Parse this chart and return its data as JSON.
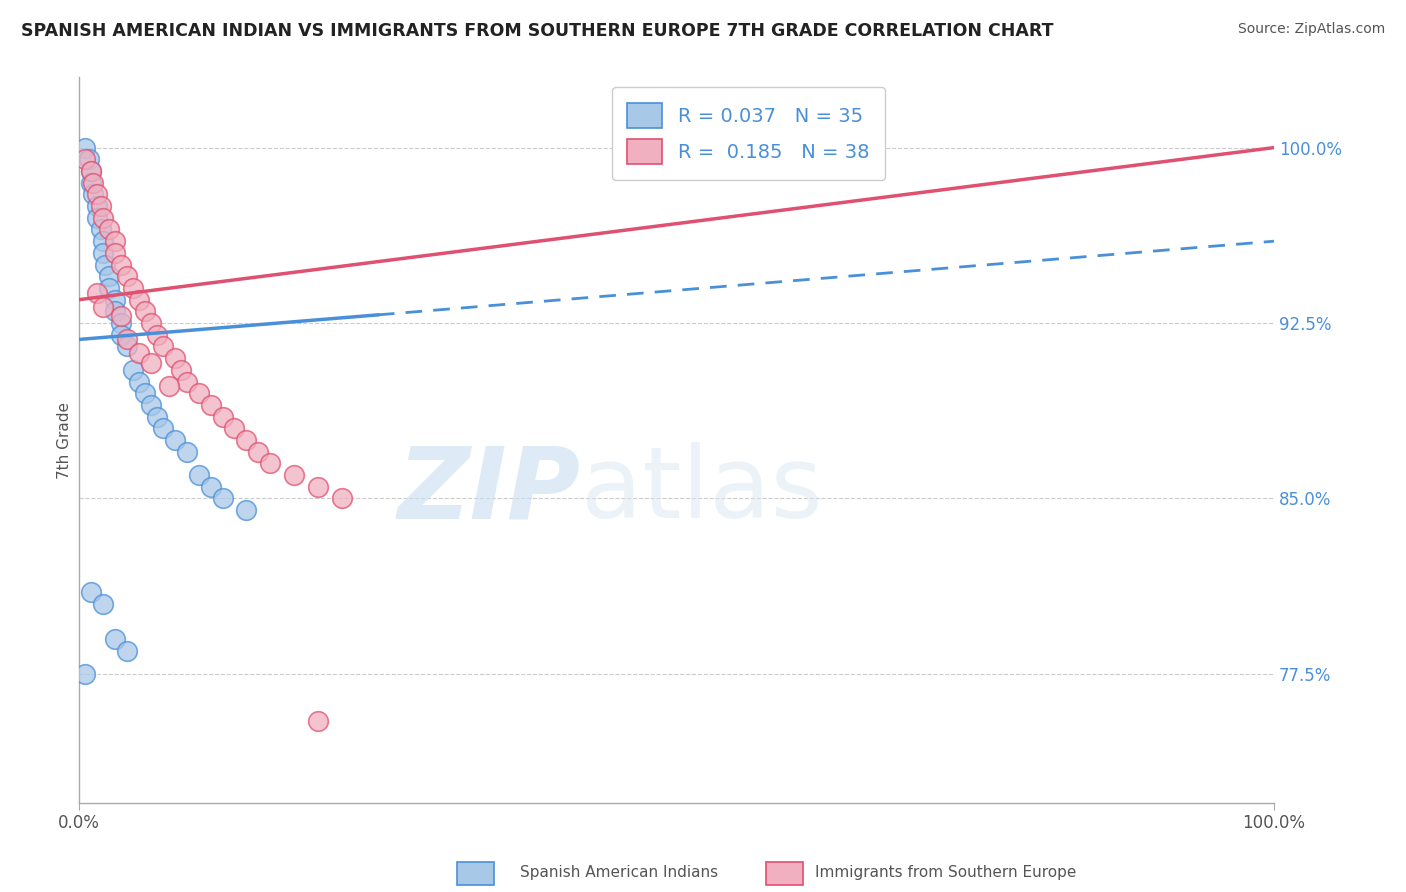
{
  "title": "SPANISH AMERICAN INDIAN VS IMMIGRANTS FROM SOUTHERN EUROPE 7TH GRADE CORRELATION CHART",
  "source": "Source: ZipAtlas.com",
  "ylabel": "7th Grade",
  "right_yticks": [
    77.5,
    85.0,
    92.5,
    100.0
  ],
  "right_yticklabels": [
    "77.5%",
    "85.0%",
    "92.5%",
    "100.0%"
  ],
  "legend_label1": "Spanish American Indians",
  "legend_label2": "Immigrants from Southern Europe",
  "R1": 0.037,
  "N1": 35,
  "R2": 0.185,
  "N2": 38,
  "color_blue": "#a8c8e8",
  "color_pink": "#f0b0c0",
  "color_blue_line": "#4a90d9",
  "color_pink_line": "#e05070",
  "color_blue_dash": "#8ab8e0",
  "watermark_zip": "ZIP",
  "watermark_atlas": "atlas",
  "blue_scatter_x": [
    0.5,
    0.8,
    1.0,
    1.0,
    1.2,
    1.5,
    1.5,
    1.8,
    2.0,
    2.0,
    2.2,
    2.5,
    2.5,
    3.0,
    3.0,
    3.5,
    3.5,
    4.0,
    4.5,
    5.0,
    5.5,
    6.0,
    6.5,
    7.0,
    8.0,
    9.0,
    10.0,
    11.0,
    12.0,
    14.0,
    0.5,
    1.0,
    2.0,
    3.0,
    4.0
  ],
  "blue_scatter_y": [
    100.0,
    99.5,
    99.0,
    98.5,
    98.0,
    97.5,
    97.0,
    96.5,
    96.0,
    95.5,
    95.0,
    94.5,
    94.0,
    93.5,
    93.0,
    92.5,
    92.0,
    91.5,
    90.5,
    90.0,
    89.5,
    89.0,
    88.5,
    88.0,
    87.5,
    87.0,
    86.0,
    85.5,
    85.0,
    84.5,
    77.5,
    81.0,
    80.5,
    79.0,
    78.5
  ],
  "pink_scatter_x": [
    0.5,
    1.0,
    1.2,
    1.5,
    1.8,
    2.0,
    2.5,
    3.0,
    3.0,
    3.5,
    4.0,
    4.5,
    5.0,
    5.5,
    6.0,
    6.5,
    7.0,
    8.0,
    8.5,
    9.0,
    10.0,
    11.0,
    12.0,
    13.0,
    14.0,
    15.0,
    16.0,
    18.0,
    20.0,
    22.0,
    1.5,
    2.0,
    3.5,
    4.0,
    5.0,
    6.0,
    7.5,
    20.0
  ],
  "pink_scatter_y": [
    99.5,
    99.0,
    98.5,
    98.0,
    97.5,
    97.0,
    96.5,
    96.0,
    95.5,
    95.0,
    94.5,
    94.0,
    93.5,
    93.0,
    92.5,
    92.0,
    91.5,
    91.0,
    90.5,
    90.0,
    89.5,
    89.0,
    88.5,
    88.0,
    87.5,
    87.0,
    86.5,
    86.0,
    85.5,
    85.0,
    93.8,
    93.2,
    92.8,
    91.8,
    91.2,
    90.8,
    89.8,
    75.5
  ],
  "xlim": [
    0,
    100
  ],
  "ylim_min": 72,
  "ylim_max": 103
}
